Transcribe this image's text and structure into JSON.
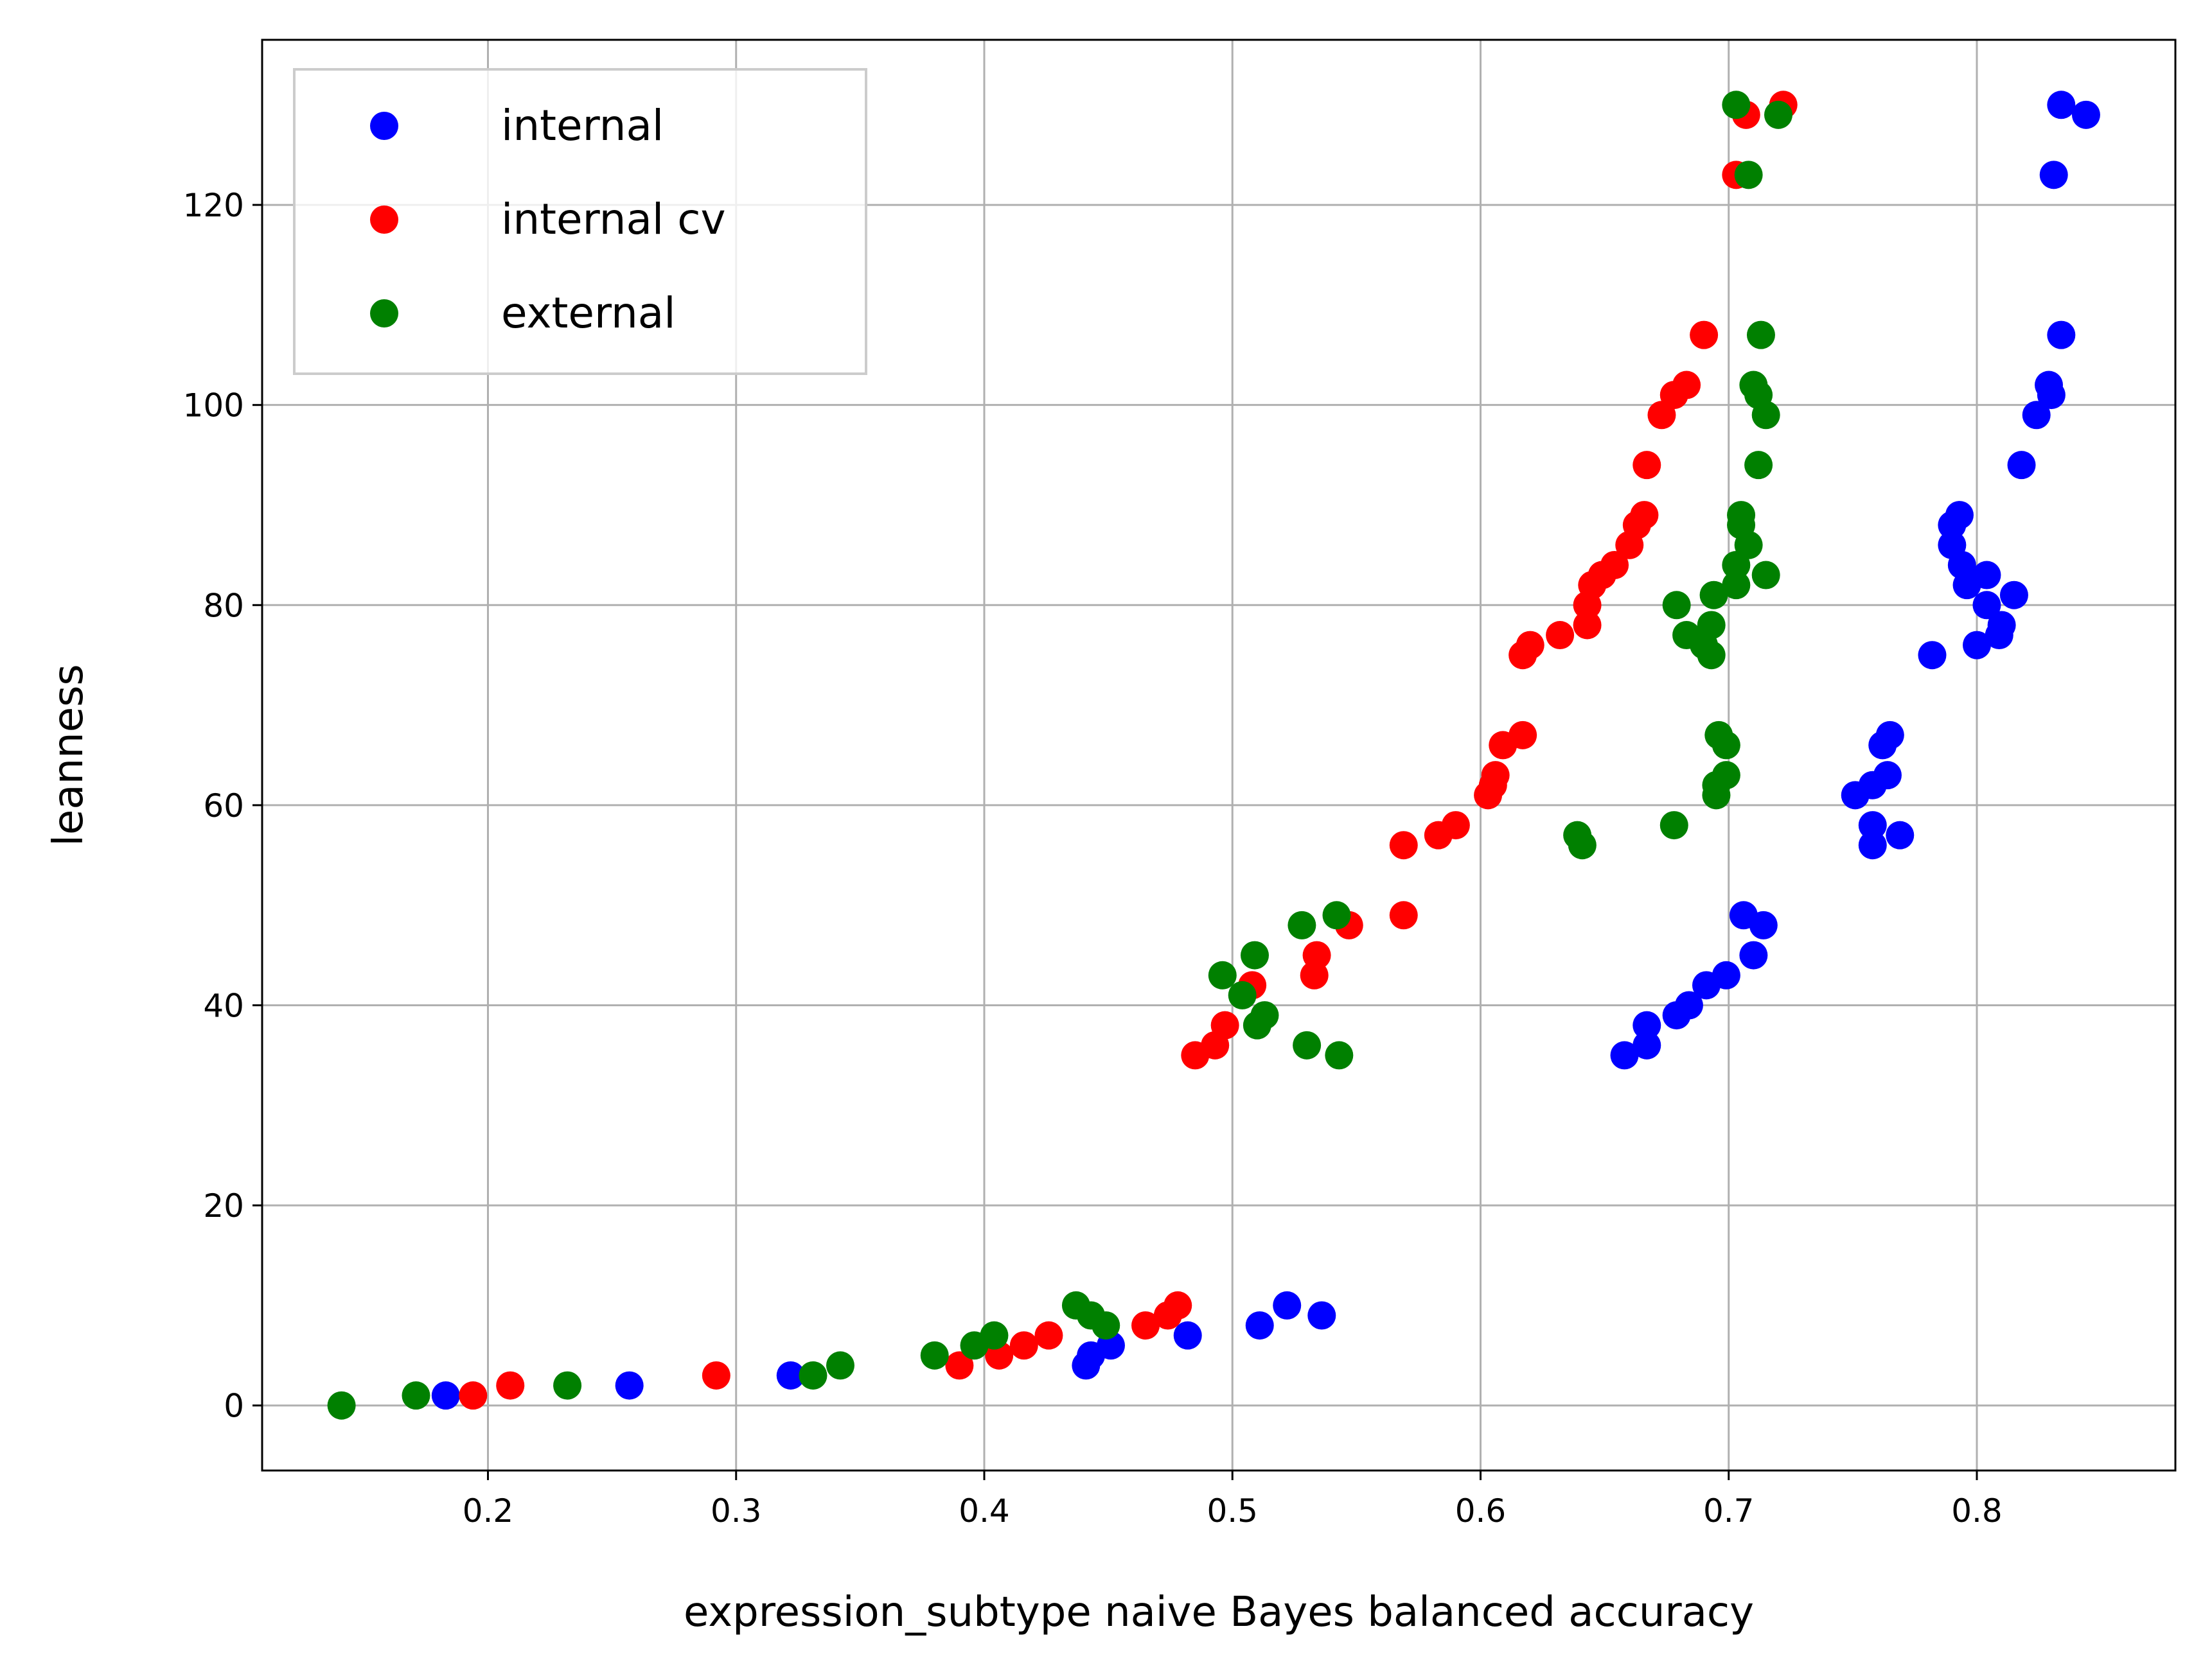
{
  "chart_data": {
    "type": "scatter",
    "title": "",
    "xlabel": "expression_subtype naive Bayes balanced accuracy",
    "ylabel": "leanness",
    "xlim": [
      0.109,
      0.88
    ],
    "ylim": [
      -6.5,
      136.5
    ],
    "xticks": [
      0.2,
      0.3,
      0.4,
      0.5,
      0.6,
      0.7,
      0.8
    ],
    "xtick_labels": [
      "0.2",
      "0.3",
      "0.4",
      "0.5",
      "0.6",
      "0.7",
      "0.8"
    ],
    "yticks": [
      0,
      20,
      40,
      60,
      80,
      100,
      120
    ],
    "ytick_labels": [
      "0",
      "20",
      "40",
      "60",
      "80",
      "100",
      "120"
    ],
    "grid": true,
    "legend_position": "upper-left",
    "series": [
      {
        "name": "internal",
        "color": "#0000ff",
        "points": [
          [
            0.183,
            1
          ],
          [
            0.257,
            2
          ],
          [
            0.322,
            3
          ],
          [
            0.441,
            4
          ],
          [
            0.443,
            5
          ],
          [
            0.451,
            6
          ],
          [
            0.482,
            7
          ],
          [
            0.511,
            8
          ],
          [
            0.536,
            9
          ],
          [
            0.522,
            10
          ],
          [
            0.658,
            35
          ],
          [
            0.667,
            36
          ],
          [
            0.667,
            38
          ],
          [
            0.679,
            39
          ],
          [
            0.684,
            40
          ],
          [
            0.691,
            42
          ],
          [
            0.699,
            43
          ],
          [
            0.71,
            45
          ],
          [
            0.706,
            49
          ],
          [
            0.714,
            48
          ],
          [
            0.758,
            56
          ],
          [
            0.769,
            57
          ],
          [
            0.758,
            58
          ],
          [
            0.751,
            61
          ],
          [
            0.758,
            62
          ],
          [
            0.764,
            63
          ],
          [
            0.762,
            66
          ],
          [
            0.765,
            67
          ],
          [
            0.782,
            75
          ],
          [
            0.8,
            76
          ],
          [
            0.809,
            77
          ],
          [
            0.81,
            78
          ],
          [
            0.804,
            80
          ],
          [
            0.815,
            81
          ],
          [
            0.796,
            82
          ],
          [
            0.804,
            83
          ],
          [
            0.794,
            84
          ],
          [
            0.79,
            86
          ],
          [
            0.79,
            88
          ],
          [
            0.793,
            89
          ],
          [
            0.818,
            94
          ],
          [
            0.824,
            99
          ],
          [
            0.83,
            101
          ],
          [
            0.829,
            102
          ],
          [
            0.834,
            107
          ],
          [
            0.831,
            123
          ],
          [
            0.834,
            130
          ],
          [
            0.844,
            129
          ]
        ]
      },
      {
        "name": "internal cv",
        "color": "#ff0000",
        "points": [
          [
            0.194,
            1
          ],
          [
            0.209,
            2
          ],
          [
            0.292,
            3
          ],
          [
            0.39,
            4
          ],
          [
            0.406,
            5
          ],
          [
            0.416,
            6
          ],
          [
            0.426,
            7
          ],
          [
            0.465,
            8
          ],
          [
            0.474,
            9
          ],
          [
            0.478,
            10
          ],
          [
            0.485,
            35
          ],
          [
            0.493,
            36
          ],
          [
            0.497,
            38
          ],
          [
            0.508,
            42
          ],
          [
            0.533,
            43
          ],
          [
            0.534,
            45
          ],
          [
            0.547,
            48
          ],
          [
            0.569,
            49
          ],
          [
            0.569,
            56
          ],
          [
            0.583,
            57
          ],
          [
            0.59,
            58
          ],
          [
            0.603,
            61
          ],
          [
            0.605,
            62
          ],
          [
            0.606,
            63
          ],
          [
            0.609,
            66
          ],
          [
            0.617,
            67
          ],
          [
            0.617,
            75
          ],
          [
            0.62,
            76
          ],
          [
            0.632,
            77
          ],
          [
            0.643,
            78
          ],
          [
            0.643,
            80
          ],
          [
            0.645,
            82
          ],
          [
            0.649,
            83
          ],
          [
            0.654,
            84
          ],
          [
            0.66,
            86
          ],
          [
            0.663,
            88
          ],
          [
            0.666,
            89
          ],
          [
            0.667,
            94
          ],
          [
            0.673,
            99
          ],
          [
            0.678,
            101
          ],
          [
            0.683,
            102
          ],
          [
            0.69,
            107
          ],
          [
            0.703,
            123
          ],
          [
            0.707,
            129
          ],
          [
            0.722,
            130
          ]
        ]
      },
      {
        "name": "external",
        "color": "#008000",
        "points": [
          [
            0.141,
            0
          ],
          [
            0.171,
            1
          ],
          [
            0.232,
            2
          ],
          [
            0.331,
            3
          ],
          [
            0.342,
            4
          ],
          [
            0.38,
            5
          ],
          [
            0.396,
            6
          ],
          [
            0.404,
            7
          ],
          [
            0.449,
            8
          ],
          [
            0.443,
            9
          ],
          [
            0.437,
            10
          ],
          [
            0.543,
            35
          ],
          [
            0.53,
            36
          ],
          [
            0.51,
            38
          ],
          [
            0.513,
            39
          ],
          [
            0.504,
            41
          ],
          [
            0.496,
            43
          ],
          [
            0.509,
            45
          ],
          [
            0.528,
            48
          ],
          [
            0.542,
            49
          ],
          [
            0.641,
            56
          ],
          [
            0.639,
            57
          ],
          [
            0.678,
            58
          ],
          [
            0.695,
            61
          ],
          [
            0.695,
            62
          ],
          [
            0.699,
            63
          ],
          [
            0.699,
            66
          ],
          [
            0.696,
            67
          ],
          [
            0.693,
            75
          ],
          [
            0.69,
            76
          ],
          [
            0.683,
            77
          ],
          [
            0.693,
            78
          ],
          [
            0.679,
            80
          ],
          [
            0.694,
            81
          ],
          [
            0.703,
            82
          ],
          [
            0.715,
            83
          ],
          [
            0.703,
            84
          ],
          [
            0.708,
            86
          ],
          [
            0.705,
            88
          ],
          [
            0.705,
            89
          ],
          [
            0.712,
            94
          ],
          [
            0.715,
            99
          ],
          [
            0.712,
            101
          ],
          [
            0.71,
            102
          ],
          [
            0.713,
            107
          ],
          [
            0.708,
            123
          ],
          [
            0.72,
            129
          ],
          [
            0.703,
            130
          ]
        ]
      }
    ]
  }
}
